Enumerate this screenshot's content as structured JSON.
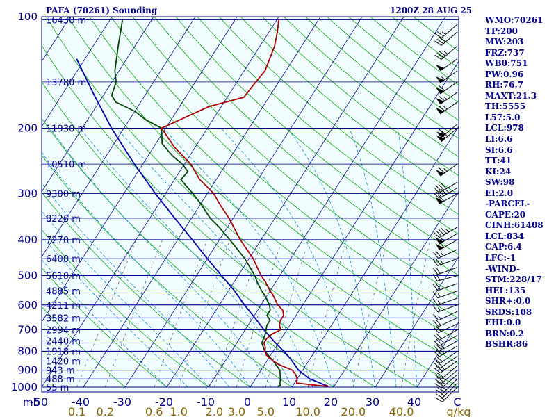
{
  "header": {
    "title": "PAFA (70261) Sounding",
    "datetime": "1200Z 28 AUG 25"
  },
  "indices": [
    "WMO:70261",
    "TP:200",
    "MW:203",
    "FRZ:737",
    "WB0:751",
    "PW:0.96",
    "RH:76.7",
    "MAXT:21.3",
    "TH:5555",
    "L57:5.0",
    "LCL:978",
    "LI:6.6",
    "SI:6.6",
    "TT:41",
    "KI:24",
    "SW:98",
    "EI:2.0",
    "-PARCEL-",
    "CAPE:20",
    "CINH:61408",
    "LCL:834",
    "CAP:6.4",
    "LFC:-1",
    "-WIND-",
    "STM:228/17",
    "HEL:135",
    "SHR+:0.0",
    "SRDS:108",
    "EHI:0.0",
    "BRN:0.2",
    "BSHR:86"
  ],
  "colors": {
    "frame_bg": "#f0fcff",
    "isobar": "#000088",
    "isotherm": "#000088",
    "dry_adiabat": "#00aa00",
    "moist_adiabat": "#0088cc",
    "mixing_ratio": "#555555",
    "temperature": "#aa0000",
    "dewpoint": "#004400",
    "parcel": "#0000aa",
    "wind_barbs": "#000000"
  },
  "chart_data": {
    "type": "skew-t",
    "ylabel": "mb",
    "xlabel": "C",
    "mixing_ratio_unit": "g/kg",
    "pressure_range": [
      100,
      1000
    ],
    "temperature_range": [
      -50,
      50
    ],
    "pressure_ticks": [
      100,
      200,
      300,
      400,
      500,
      600,
      700,
      800,
      900,
      1000
    ],
    "temperature_ticks": [
      -50,
      -40,
      -30,
      -20,
      -10,
      0,
      10,
      20,
      30,
      40
    ],
    "temperature_tick_labels": [
      "-50",
      "-40",
      "-30",
      "-20",
      "-10",
      "0",
      "10",
      "20",
      "30",
      "40"
    ],
    "unit_label_c": "C",
    "mixing_ratio_labels": [
      "0.1",
      "0.2",
      "0.6",
      "1.0",
      "2.0",
      "3.0",
      "5.0",
      "10.0",
      "20.0",
      "40.0"
    ],
    "mixing_ratio_unit_label": "g/kg",
    "heights": [
      {
        "p": 102,
        "label": "16430 m"
      },
      {
        "p": 150,
        "label": "13780 m"
      },
      {
        "p": 200,
        "label": "11930 m"
      },
      {
        "p": 250,
        "label": "10510 m"
      },
      {
        "p": 300,
        "label": "9300 m"
      },
      {
        "p": 350,
        "label": "8226 m"
      },
      {
        "p": 400,
        "label": "7270 m"
      },
      {
        "p": 450,
        "label": "6400 m"
      },
      {
        "p": 500,
        "label": "5610 m"
      },
      {
        "p": 550,
        "label": "4885 m"
      },
      {
        "p": 600,
        "label": "4211 m"
      },
      {
        "p": 650,
        "label": "3582 m"
      },
      {
        "p": 700,
        "label": "2994 m"
      },
      {
        "p": 750,
        "label": "2440 m"
      },
      {
        "p": 800,
        "label": "1918 m"
      },
      {
        "p": 850,
        "label": "1420 m"
      },
      {
        "p": 900,
        "label": "943 m"
      },
      {
        "p": 950,
        "label": "488 m"
      },
      {
        "p": 1000,
        "label": "55 m"
      }
    ],
    "temperature_profile": [
      [
        995,
        18.6
      ],
      [
        990,
        16.0
      ],
      [
        975,
        10.5
      ],
      [
        950,
        10.0
      ],
      [
        925,
        9.0
      ],
      [
        900,
        7.5
      ],
      [
        870,
        3.5
      ],
      [
        850,
        1.5
      ],
      [
        820,
        -1.0
      ],
      [
        800,
        -2.0
      ],
      [
        780,
        -2.5
      ],
      [
        760,
        -3.5
      ],
      [
        740,
        -3.5
      ],
      [
        720,
        -3.0
      ],
      [
        700,
        -1.5
      ],
      [
        680,
        -2.5
      ],
      [
        660,
        -3.0
      ],
      [
        640,
        -3.0
      ],
      [
        620,
        -4.0
      ],
      [
        600,
        -6.0
      ],
      [
        560,
        -9.0
      ],
      [
        550,
        -10.0
      ],
      [
        520,
        -12.5
      ],
      [
        500,
        -14.5
      ],
      [
        450,
        -19.0
      ],
      [
        400,
        -25.0
      ],
      [
        350,
        -31.0
      ],
      [
        320,
        -35.5
      ],
      [
        300,
        -38.5
      ],
      [
        275,
        -44.0
      ],
      [
        250,
        -48.5
      ],
      [
        225,
        -55.0
      ],
      [
        200,
        -61.0
      ],
      [
        175,
        -53.0
      ],
      [
        165,
        -46.0
      ],
      [
        150,
        -45.5
      ],
      [
        140,
        -45.0
      ],
      [
        120,
        -46.5
      ],
      [
        110,
        -48.0
      ],
      [
        102,
        -49.5
      ]
    ],
    "dewpoint_profile": [
      [
        995,
        6.5
      ],
      [
        990,
        7.0
      ],
      [
        975,
        6.5
      ],
      [
        950,
        6.0
      ],
      [
        900,
        4.5
      ],
      [
        850,
        1.5
      ],
      [
        800,
        -2.0
      ],
      [
        760,
        -4.0
      ],
      [
        720,
        -4.5
      ],
      [
        700,
        -5.0
      ],
      [
        680,
        -5.5
      ],
      [
        660,
        -5.5
      ],
      [
        640,
        -7.0
      ],
      [
        620,
        -7.0
      ],
      [
        600,
        -8.0
      ],
      [
        560,
        -11.0
      ],
      [
        550,
        -12.0
      ],
      [
        520,
        -14.5
      ],
      [
        500,
        -16.0
      ],
      [
        450,
        -21.0
      ],
      [
        400,
        -27.5
      ],
      [
        370,
        -32.0
      ],
      [
        350,
        -35.5
      ],
      [
        320,
        -40.0
      ],
      [
        300,
        -43.5
      ],
      [
        285,
        -46.5
      ],
      [
        275,
        -48.5
      ],
      [
        262,
        -48.0
      ],
      [
        250,
        -50.5
      ],
      [
        238,
        -54.0
      ],
      [
        230,
        -56.0
      ],
      [
        220,
        -58.5
      ],
      [
        200,
        -61.0
      ],
      [
        190,
        -66.0
      ],
      [
        180,
        -70.0
      ],
      [
        175,
        -73.0
      ],
      [
        170,
        -76.0
      ],
      [
        163,
        -78.0
      ],
      [
        150,
        -79.0
      ],
      [
        140,
        -81.0
      ],
      [
        120,
        -84.0
      ],
      [
        102,
        -87.0
      ]
    ],
    "parcel_profile": [
      [
        995,
        18.6
      ],
      [
        950,
        13.0
      ],
      [
        900,
        9.0
      ],
      [
        850,
        6.0
      ],
      [
        834,
        5.0
      ],
      [
        800,
        2.5
      ],
      [
        750,
        -1.5
      ],
      [
        700,
        -5.5
      ],
      [
        650,
        -9.5
      ],
      [
        600,
        -14.0
      ],
      [
        550,
        -18.5
      ],
      [
        500,
        -24.0
      ],
      [
        450,
        -30.0
      ],
      [
        400,
        -36.5
      ],
      [
        350,
        -44.0
      ],
      [
        300,
        -52.5
      ],
      [
        250,
        -62.0
      ],
      [
        200,
        -73.0
      ],
      [
        160,
        -83.0
      ],
      [
        130,
        -92.0
      ]
    ],
    "wind_barbs": [
      {
        "p": 1000,
        "dir": 225,
        "spd": 15
      },
      {
        "p": 975,
        "dir": 225,
        "spd": 15
      },
      {
        "p": 950,
        "dir": 225,
        "spd": 25
      },
      {
        "p": 925,
        "dir": 230,
        "spd": 25
      },
      {
        "p": 900,
        "dir": 230,
        "spd": 25
      },
      {
        "p": 875,
        "dir": 230,
        "spd": 20
      },
      {
        "p": 850,
        "dir": 235,
        "spd": 25
      },
      {
        "p": 825,
        "dir": 235,
        "spd": 20
      },
      {
        "p": 800,
        "dir": 235,
        "spd": 20
      },
      {
        "p": 775,
        "dir": 240,
        "spd": 25
      },
      {
        "p": 750,
        "dir": 240,
        "spd": 25
      },
      {
        "p": 725,
        "dir": 240,
        "spd": 25
      },
      {
        "p": 700,
        "dir": 240,
        "spd": 20
      },
      {
        "p": 675,
        "dir": 245,
        "spd": 20
      },
      {
        "p": 650,
        "dir": 245,
        "spd": 20
      },
      {
        "p": 625,
        "dir": 245,
        "spd": 15
      },
      {
        "p": 600,
        "dir": 250,
        "spd": 15
      },
      {
        "p": 575,
        "dir": 250,
        "spd": 15
      },
      {
        "p": 550,
        "dir": 250,
        "spd": 15
      },
      {
        "p": 525,
        "dir": 250,
        "spd": 20
      },
      {
        "p": 500,
        "dir": 255,
        "spd": 20
      },
      {
        "p": 475,
        "dir": 250,
        "spd": 20
      },
      {
        "p": 450,
        "dir": 250,
        "spd": 25
      },
      {
        "p": 425,
        "dir": 245,
        "spd": 25
      },
      {
        "p": 400,
        "dir": 240,
        "spd": 60
      },
      {
        "p": 385,
        "dir": 240,
        "spd": 55
      },
      {
        "p": 370,
        "dir": 240,
        "spd": 45
      },
      {
        "p": 300,
        "dir": 240,
        "spd": 60
      },
      {
        "p": 290,
        "dir": 240,
        "spd": 45
      },
      {
        "p": 280,
        "dir": 240,
        "spd": 40
      },
      {
        "p": 250,
        "dir": 235,
        "spd": 65
      },
      {
        "p": 200,
        "dir": 230,
        "spd": 70
      },
      {
        "p": 195,
        "dir": 230,
        "spd": 60
      },
      {
        "p": 170,
        "dir": 235,
        "spd": 65
      },
      {
        "p": 160,
        "dir": 235,
        "spd": 65
      },
      {
        "p": 150,
        "dir": 235,
        "spd": 60
      },
      {
        "p": 140,
        "dir": 235,
        "spd": 55
      },
      {
        "p": 130,
        "dir": 235,
        "spd": 50
      },
      {
        "p": 120,
        "dir": 230,
        "spd": 35
      },
      {
        "p": 110,
        "dir": 230,
        "spd": 30
      },
      {
        "p": 105,
        "dir": 230,
        "spd": 25
      }
    ]
  }
}
